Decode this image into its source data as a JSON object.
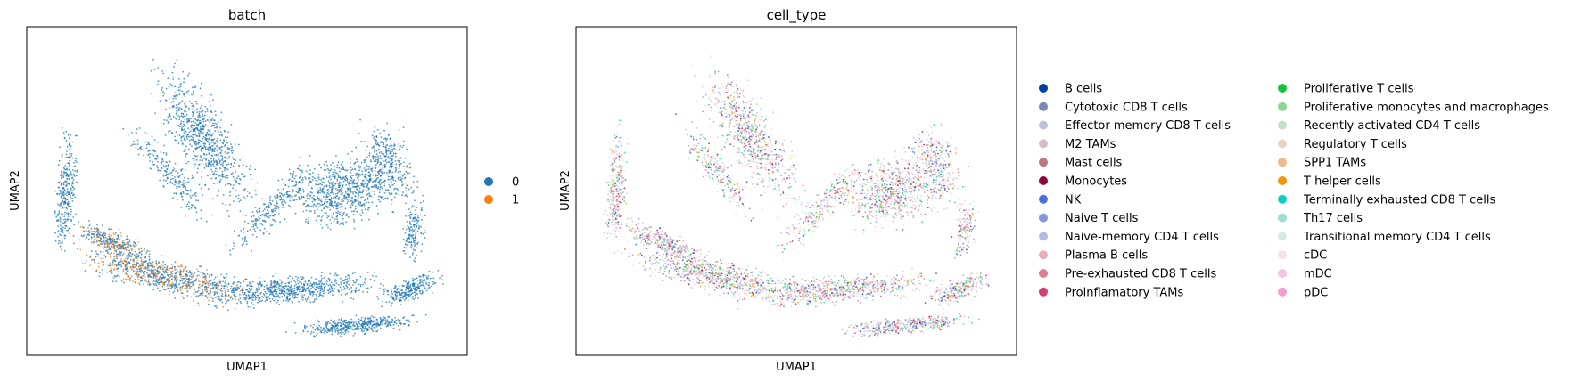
{
  "chart_data": [
    {
      "type": "scatter",
      "title": "batch",
      "xlabel": "UMAP1",
      "ylabel": "UMAP2",
      "grid": false,
      "ticks": false,
      "legend_placement": "right",
      "series": [
        {
          "name": "0",
          "color": "#1f77b4"
        },
        {
          "name": "1",
          "color": "#ff7f0e"
        }
      ]
    },
    {
      "type": "scatter",
      "title": "cell_type",
      "xlabel": "UMAP1",
      "ylabel": "UMAP2",
      "grid": false,
      "ticks": false,
      "legend_placement": "right",
      "series": [
        {
          "name": "B cells",
          "color": "#023fa5"
        },
        {
          "name": "Cytotoxic CD8 T cells",
          "color": "#7d87b9"
        },
        {
          "name": "Effector memory CD8 T cells",
          "color": "#bec1d4"
        },
        {
          "name": "M2 TAMs",
          "color": "#d6bcc0"
        },
        {
          "name": "Mast cells",
          "color": "#bb7784"
        },
        {
          "name": "Monocytes",
          "color": "#8e063b"
        },
        {
          "name": "NK",
          "color": "#4a6fe3"
        },
        {
          "name": "Naive T cells",
          "color": "#8595e1"
        },
        {
          "name": "Naive-memory CD4 T cells",
          "color": "#b5bbe3"
        },
        {
          "name": "Plasma B cells",
          "color": "#e6afb9"
        },
        {
          "name": "Pre-exhausted CD8 T cells",
          "color": "#e07b91"
        },
        {
          "name": "Proinflamatory TAMs",
          "color": "#d33f6a"
        },
        {
          "name": "Proliferative T cells",
          "color": "#11c638"
        },
        {
          "name": "Proliferative monocytes and macrophages",
          "color": "#8dd593"
        },
        {
          "name": "Recently activated CD4 T cells",
          "color": "#c6dec7"
        },
        {
          "name": "Regulatory T cells",
          "color": "#ead3c6"
        },
        {
          "name": "SPP1 TAMs",
          "color": "#f0b98d"
        },
        {
          "name": "T helper cells",
          "color": "#ef9708"
        },
        {
          "name": "Terminally exhausted CD8 T cells",
          "color": "#0fcfc0"
        },
        {
          "name": "Th17 cells",
          "color": "#9cded6"
        },
        {
          "name": "Transitional memory CD4 T cells",
          "color": "#d5eae7"
        },
        {
          "name": "cDC",
          "color": "#f3e1eb"
        },
        {
          "name": "mDC",
          "color": "#f6c4e1"
        },
        {
          "name": "pDC",
          "color": "#f79cd4"
        }
      ]
    }
  ]
}
